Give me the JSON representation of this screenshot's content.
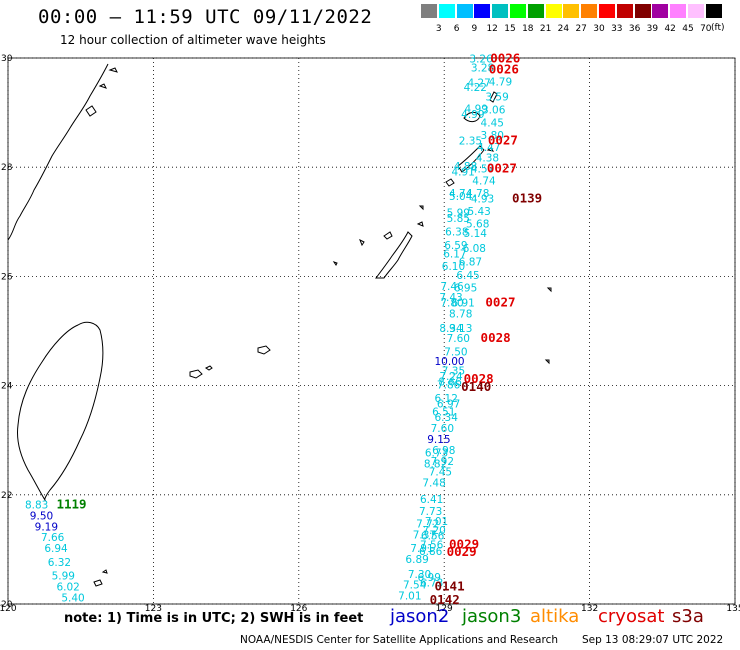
{
  "header": {
    "title": "00:00 – 11:59 UTC 09/11/2022",
    "subtitle": "12 hour collection of altimeter wave heights"
  },
  "scale": {
    "unit": "(ft)",
    "colors": [
      "#7f7f7f",
      "#00ffff",
      "#00bfff",
      "#0000ff",
      "#00c0c0",
      "#00ff00",
      "#00a000",
      "#ffff00",
      "#ffc000",
      "#ff8000",
      "#ff0000",
      "#c00000",
      "#800000",
      "#a000a0",
      "#ff80ff",
      "#ffc0ff",
      "#000000"
    ],
    "labels": [
      "3",
      "6",
      "9",
      "12",
      "15",
      "18",
      "21",
      "24",
      "27",
      "30",
      "33",
      "36",
      "39",
      "42",
      "45",
      "70"
    ]
  },
  "map": {
    "lon_range": [
      120,
      135
    ],
    "lat_range": [
      20,
      30
    ],
    "lon_ticks": [
      "120",
      "123",
      "126",
      "129",
      "132",
      "135"
    ],
    "lat_ticks": [
      "30",
      "28",
      "26",
      "24",
      "22",
      "20"
    ],
    "grid": "dotted",
    "lon_tick_values": [
      120,
      123,
      126,
      129,
      132,
      135
    ],
    "lat_tick_values": [
      30,
      28,
      26,
      24,
      22,
      20
    ]
  },
  "observations": [
    {
      "lon": 129.52,
      "lat": 29.92,
      "text": "3.26",
      "color": "#00c8dc"
    },
    {
      "lon": 129.55,
      "lat": 29.75,
      "text": "3.28",
      "color": "#00c8dc"
    },
    {
      "lon": 129.92,
      "lat": 29.5,
      "text": "4.79",
      "color": "#00c8dc"
    },
    {
      "lon": 129.48,
      "lat": 29.48,
      "text": "4.27",
      "color": "#00c8dc"
    },
    {
      "lon": 129.4,
      "lat": 29.4,
      "text": "4.22",
      "color": "#00c8dc"
    },
    {
      "lon": 129.85,
      "lat": 29.22,
      "text": "3.59",
      "color": "#00c8dc"
    },
    {
      "lon": 129.42,
      "lat": 29.0,
      "text": "4.99",
      "color": "#00c8dc"
    },
    {
      "lon": 129.78,
      "lat": 28.98,
      "text": "3.06",
      "color": "#00c8dc"
    },
    {
      "lon": 129.35,
      "lat": 28.9,
      "text": "4.99",
      "color": "#00c8dc"
    },
    {
      "lon": 129.75,
      "lat": 28.75,
      "text": "4.45",
      "color": "#00c8dc"
    },
    {
      "lon": 129.75,
      "lat": 28.52,
      "text": "3.80",
      "color": "#00c8dc"
    },
    {
      "lon": 129.3,
      "lat": 28.42,
      "text": "2.35",
      "color": "#00c8dc"
    },
    {
      "lon": 129.68,
      "lat": 28.3,
      "text": "4.47",
      "color": "#00c8dc"
    },
    {
      "lon": 129.65,
      "lat": 28.1,
      "text": "4.38",
      "color": "#00c8dc"
    },
    {
      "lon": 129.2,
      "lat": 27.95,
      "text": "4.88",
      "color": "#00c8dc"
    },
    {
      "lon": 129.55,
      "lat": 27.9,
      "text": "4.57",
      "color": "#00c8dc"
    },
    {
      "lon": 129.15,
      "lat": 27.85,
      "text": "4.91",
      "color": "#00c8dc"
    },
    {
      "lon": 129.58,
      "lat": 27.68,
      "text": "4.74",
      "color": "#00c8dc"
    },
    {
      "lon": 129.1,
      "lat": 27.45,
      "text": "4.74",
      "color": "#00c8dc"
    },
    {
      "lon": 129.45,
      "lat": 27.45,
      "text": "4.78",
      "color": "#00c8dc"
    },
    {
      "lon": 129.1,
      "lat": 27.4,
      "text": "5.04",
      "color": "#00c8dc"
    },
    {
      "lon": 129.55,
      "lat": 27.35,
      "text": "4.93",
      "color": "#00c8dc"
    },
    {
      "lon": 129.48,
      "lat": 27.12,
      "text": "5.43",
      "color": "#00c8dc"
    },
    {
      "lon": 129.05,
      "lat": 27.1,
      "text": "5.99",
      "color": "#00c8dc"
    },
    {
      "lon": 129.05,
      "lat": 27.0,
      "text": "5.85",
      "color": "#00c8dc"
    },
    {
      "lon": 129.45,
      "lat": 26.9,
      "text": "5.68",
      "color": "#00c8dc"
    },
    {
      "lon": 129.02,
      "lat": 26.75,
      "text": "6.38",
      "color": "#00c8dc"
    },
    {
      "lon": 129.4,
      "lat": 26.72,
      "text": "5.14",
      "color": "#00c8dc"
    },
    {
      "lon": 129.0,
      "lat": 26.5,
      "text": "6.59",
      "color": "#00c8dc"
    },
    {
      "lon": 129.38,
      "lat": 26.45,
      "text": "6.08",
      "color": "#00c8dc"
    },
    {
      "lon": 128.98,
      "lat": 26.35,
      "text": "6.17",
      "color": "#00c8dc"
    },
    {
      "lon": 129.3,
      "lat": 26.2,
      "text": "6.87",
      "color": "#00c8dc"
    },
    {
      "lon": 128.95,
      "lat": 26.12,
      "text": "6.10",
      "color": "#00c8dc"
    },
    {
      "lon": 129.25,
      "lat": 25.95,
      "text": "6.45",
      "color": "#00c8dc"
    },
    {
      "lon": 128.92,
      "lat": 25.75,
      "text": "7.46",
      "color": "#00c8dc"
    },
    {
      "lon": 129.2,
      "lat": 25.72,
      "text": "6.95",
      "color": "#00c8dc"
    },
    {
      "lon": 128.9,
      "lat": 25.55,
      "text": "7.43",
      "color": "#00c8dc"
    },
    {
      "lon": 129.15,
      "lat": 25.45,
      "text": "6.91",
      "color": "#00c8dc"
    },
    {
      "lon": 128.92,
      "lat": 25.45,
      "text": "7.80",
      "color": "#00c8dc"
    },
    {
      "lon": 129.1,
      "lat": 25.25,
      "text": "8.78",
      "color": "#00c8dc"
    },
    {
      "lon": 128.9,
      "lat": 24.98,
      "text": "8.34",
      "color": "#00c8dc"
    },
    {
      "lon": 129.1,
      "lat": 24.98,
      "text": "9.13",
      "color": "#00c8dc"
    },
    {
      "lon": 129.05,
      "lat": 24.8,
      "text": "7.60",
      "color": "#00c8dc"
    },
    {
      "lon": 129.0,
      "lat": 24.55,
      "text": "7.50",
      "color": "#00c8dc"
    },
    {
      "lon": 128.8,
      "lat": 24.38,
      "text": "10.00",
      "color": "#0000c8"
    },
    {
      "lon": 128.95,
      "lat": 24.2,
      "text": "7.35",
      "color": "#00c8dc"
    },
    {
      "lon": 128.9,
      "lat": 24.1,
      "text": "7.24",
      "color": "#00c8dc"
    },
    {
      "lon": 128.88,
      "lat": 24.0,
      "text": "8.66",
      "color": "#00c8dc"
    },
    {
      "lon": 128.85,
      "lat": 23.95,
      "text": "7.86",
      "color": "#00c8dc"
    },
    {
      "lon": 128.8,
      "lat": 23.7,
      "text": "6.12",
      "color": "#00c8dc"
    },
    {
      "lon": 128.85,
      "lat": 23.6,
      "text": "6.97",
      "color": "#00c8dc"
    },
    {
      "lon": 128.75,
      "lat": 23.45,
      "text": "6.51",
      "color": "#00c8dc"
    },
    {
      "lon": 128.8,
      "lat": 23.35,
      "text": "6.34",
      "color": "#00c8dc"
    },
    {
      "lon": 128.72,
      "lat": 23.15,
      "text": "7.60",
      "color": "#00c8dc"
    },
    {
      "lon": 128.65,
      "lat": 22.95,
      "text": "9.15",
      "color": "#0000c8"
    },
    {
      "lon": 128.75,
      "lat": 22.75,
      "text": "6.98",
      "color": "#00c8dc"
    },
    {
      "lon": 128.6,
      "lat": 22.7,
      "text": "6.73",
      "color": "#00c8dc"
    },
    {
      "lon": 128.72,
      "lat": 22.55,
      "text": "7.92",
      "color": "#00c8dc"
    },
    {
      "lon": 128.58,
      "lat": 22.5,
      "text": "8.82",
      "color": "#00c8dc"
    },
    {
      "lon": 128.68,
      "lat": 22.35,
      "text": "7.45",
      "color": "#00c8dc"
    },
    {
      "lon": 128.55,
      "lat": 22.15,
      "text": "7.48",
      "color": "#00c8dc"
    },
    {
      "lon": 128.5,
      "lat": 21.85,
      "text": "6.41",
      "color": "#00c8dc"
    },
    {
      "lon": 128.48,
      "lat": 21.63,
      "text": "7.73",
      "color": "#00c8dc"
    },
    {
      "lon": 128.6,
      "lat": 21.45,
      "text": "7.01",
      "color": "#00c8dc"
    },
    {
      "lon": 128.42,
      "lat": 21.4,
      "text": "7.72",
      "color": "#00c8dc"
    },
    {
      "lon": 128.55,
      "lat": 21.28,
      "text": "7.20",
      "color": "#00c8dc"
    },
    {
      "lon": 128.35,
      "lat": 21.2,
      "text": "7.37",
      "color": "#00c8dc"
    },
    {
      "lon": 128.52,
      "lat": 21.18,
      "text": "6.56",
      "color": "#00c8dc"
    },
    {
      "lon": 128.5,
      "lat": 21.02,
      "text": "7.56",
      "color": "#00c8dc"
    },
    {
      "lon": 128.3,
      "lat": 20.95,
      "text": "7.91",
      "color": "#00c8dc"
    },
    {
      "lon": 128.48,
      "lat": 20.9,
      "text": "6.86",
      "color": "#00c8dc"
    },
    {
      "lon": 128.2,
      "lat": 20.75,
      "text": "6.89",
      "color": "#00c8dc"
    },
    {
      "lon": 128.25,
      "lat": 20.48,
      "text": "7.30",
      "color": "#00c8dc"
    },
    {
      "lon": 128.45,
      "lat": 20.42,
      "text": "6.99",
      "color": "#00c8dc"
    },
    {
      "lon": 128.15,
      "lat": 20.28,
      "text": "7.54",
      "color": "#00c8dc"
    },
    {
      "lon": 128.5,
      "lat": 20.32,
      "text": "6.73",
      "color": "#00c8dc"
    },
    {
      "lon": 128.05,
      "lat": 20.08,
      "text": "7.01",
      "color": "#00c8dc"
    },
    {
      "lon": 120.35,
      "lat": 21.75,
      "text": "8.83",
      "color": "#00c8dc"
    },
    {
      "lon": 120.45,
      "lat": 21.55,
      "text": "9.50",
      "color": "#0000c8"
    },
    {
      "lon": 120.55,
      "lat": 21.35,
      "text": "9.19",
      "color": "#0000c8"
    },
    {
      "lon": 120.68,
      "lat": 21.15,
      "text": "7.66",
      "color": "#00c8dc"
    },
    {
      "lon": 120.75,
      "lat": 20.95,
      "text": "6.94",
      "color": "#00c8dc"
    },
    {
      "lon": 120.82,
      "lat": 20.7,
      "text": "6.32",
      "color": "#00c8dc"
    },
    {
      "lon": 120.9,
      "lat": 20.45,
      "text": "5.99",
      "color": "#00c8dc"
    },
    {
      "lon": 121.0,
      "lat": 20.25,
      "text": "6.02",
      "color": "#00c8dc"
    },
    {
      "lon": 121.1,
      "lat": 20.05,
      "text": "5.40",
      "color": "#00c8dc"
    }
  ],
  "time_labels": [
    {
      "lon": 129.95,
      "lat": 29.92,
      "text": "0026",
      "color": "#e00000"
    },
    {
      "lon": 129.92,
      "lat": 29.72,
      "text": "0026",
      "color": "#e00000"
    },
    {
      "lon": 129.9,
      "lat": 28.42,
      "text": "0027",
      "color": "#e00000"
    },
    {
      "lon": 129.88,
      "lat": 27.9,
      "text": "0027",
      "color": "#e00000"
    },
    {
      "lon": 130.4,
      "lat": 27.35,
      "text": "0139",
      "color": "#800000"
    },
    {
      "lon": 129.85,
      "lat": 25.45,
      "text": "0027",
      "color": "#e00000"
    },
    {
      "lon": 129.75,
      "lat": 24.8,
      "text": "0028",
      "color": "#e00000"
    },
    {
      "lon": 129.4,
      "lat": 24.05,
      "text": "0028",
      "color": "#e00000"
    },
    {
      "lon": 129.35,
      "lat": 23.9,
      "text": "0140",
      "color": "#800000"
    },
    {
      "lon": 121.0,
      "lat": 21.75,
      "text": "1119",
      "color": "#008000"
    },
    {
      "lon": 129.1,
      "lat": 21.02,
      "text": "0029",
      "color": "#e00000"
    },
    {
      "lon": 129.05,
      "lat": 20.88,
      "text": "0029",
      "color": "#e00000"
    },
    {
      "lon": 128.8,
      "lat": 20.25,
      "text": "0141",
      "color": "#800000"
    },
    {
      "lon": 128.7,
      "lat": 20.0,
      "text": "0142",
      "color": "#800000"
    }
  ],
  "footer": {
    "note": "note:  1) Time is in UTC;  2) SWH is in feet",
    "legend": [
      {
        "label": "jason2",
        "color": "#0000c8"
      },
      {
        "label": "jason3",
        "color": "#008000"
      },
      {
        "label": "altika",
        "color": "#ff8c00"
      },
      {
        "label": "cryosat",
        "color": "#e00000"
      },
      {
        "label": "s3a",
        "color": "#800000"
      }
    ],
    "credit": "NOAA/NESDIS Center for Satellite Applications and Research",
    "generated": "Sep 13 08:29:07 UTC 2022"
  }
}
